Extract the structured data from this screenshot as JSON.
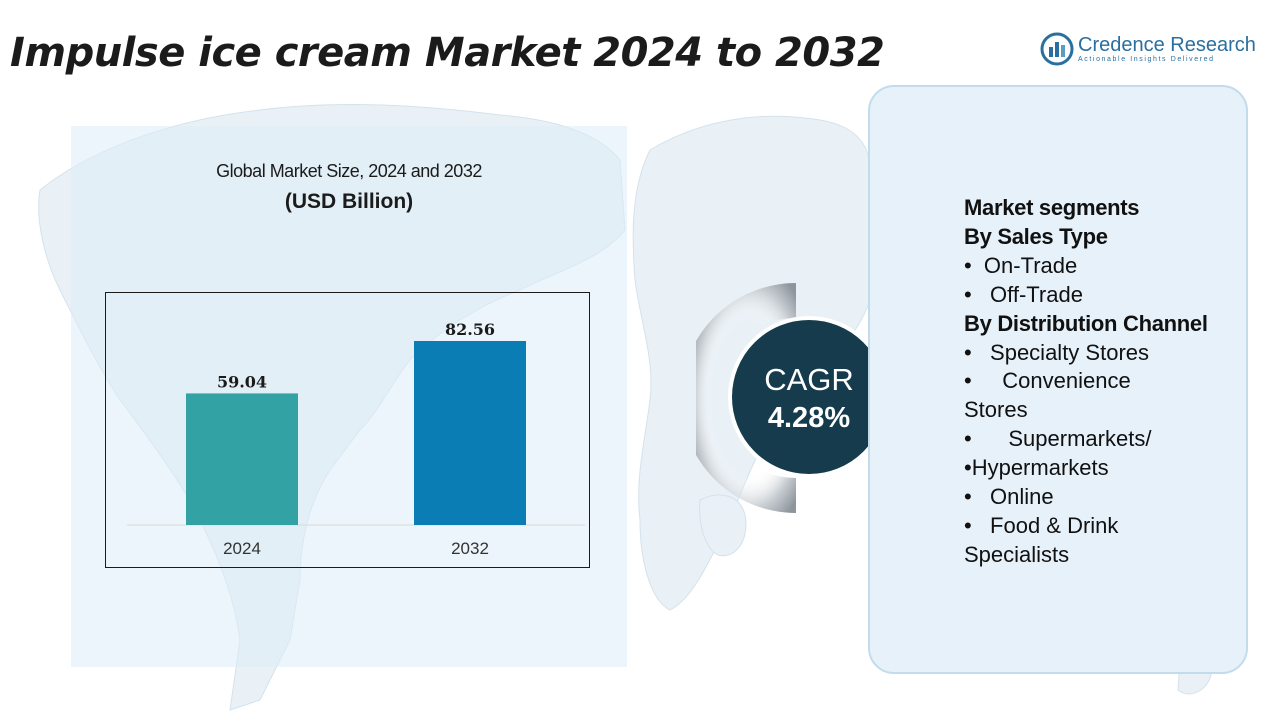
{
  "header": {
    "title": "Impulse ice cream Market 2024 to 2032"
  },
  "brand": {
    "name": "Credence Research",
    "tagline": "Actionable Insights Delivered",
    "logo_icon": "credence-logo-icon",
    "color": "#2a6fa0"
  },
  "chart_panel": {
    "title": "Global Market Size, 2024 and 2032",
    "unit": "(USD Billion)"
  },
  "chart_data": {
    "type": "bar",
    "title": "Global Market Size, 2024 and 2032",
    "ylabel": "(USD Billion)",
    "xlabel": "",
    "categories": [
      "2024",
      "2032"
    ],
    "values": [
      59.04,
      82.56
    ],
    "value_labels": [
      "59.04",
      "82.56"
    ],
    "colors": [
      "#33a2a5",
      "#0a7db4"
    ],
    "ylim": [
      0,
      100
    ],
    "grid": false,
    "legend": "none"
  },
  "cagr": {
    "label": "CAGR",
    "value": "4.28%",
    "circle_color": "#163b4c"
  },
  "segments": {
    "lines": [
      {
        "text": "Market segments",
        "bold": true
      },
      {
        "text": "By Sales Type",
        "bold": true
      },
      {
        "text": "•  On-Trade",
        "bold": false
      },
      {
        "text": "•   Off-Trade",
        "bold": false
      },
      {
        "text": "By Distribution Channel",
        "bold": true
      },
      {
        "text": "•   Specialty Stores",
        "bold": false
      },
      {
        "text": "•     Convenience",
        "bold": false
      },
      {
        "text": "Stores",
        "bold": false
      },
      {
        "text": "•      Supermarkets/",
        "bold": false
      },
      {
        "text": "•Hypermarkets",
        "bold": false
      },
      {
        "text": "•   Online",
        "bold": false
      },
      {
        "text": "•   Food & Drink",
        "bold": false
      },
      {
        "text": "Specialists",
        "bold": false
      }
    ]
  }
}
